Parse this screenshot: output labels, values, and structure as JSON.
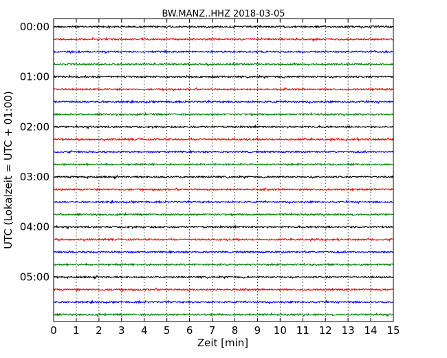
{
  "chart_data": {
    "type": "line",
    "title": "BW.MANZ..HHZ 2018-03-05",
    "xlabel": "Zeit  [min]",
    "ylabel": "UTC (Lokalzeit = UTC + 01:00)",
    "xlim": [
      0,
      15
    ],
    "x_ticks": [
      "0",
      "1",
      "2",
      "3",
      "4",
      "5",
      "6",
      "7",
      "8",
      "9",
      "10",
      "11",
      "12",
      "13",
      "14",
      "15"
    ],
    "y_tick_labels": [
      "00:00",
      "01:00",
      "02:00",
      "03:00",
      "04:00",
      "05:00"
    ],
    "trace_interval_minutes": 15,
    "trace_count": 24,
    "trace_colors": [
      "#000000",
      "#ff0000",
      "#0000ff",
      "#008000"
    ],
    "grid": {
      "vertical_dotted": true
    }
  }
}
